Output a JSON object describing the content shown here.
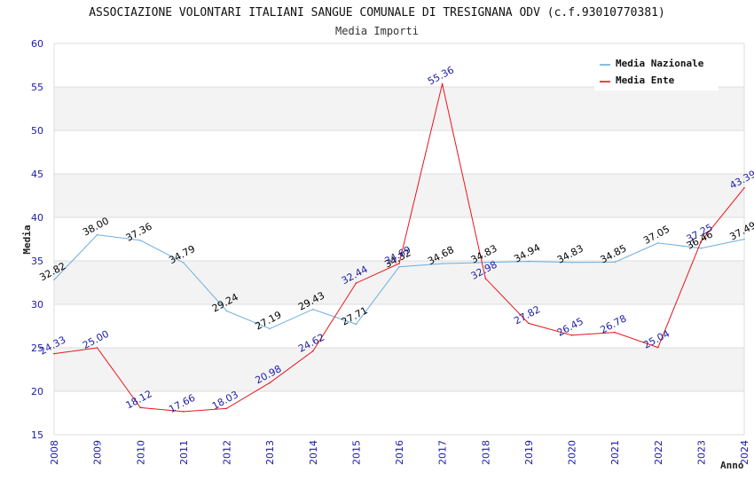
{
  "chart_data": {
    "type": "line",
    "title": "ASSOCIAZIONE VOLONTARI ITALIANI SANGUE COMUNALE DI TRESIGNANA ODV (c.f.93010770381)",
    "subtitle": "Media Importi",
    "xlabel": "Anno",
    "ylabel": "Media",
    "ylim": [
      15,
      60
    ],
    "yticks": [
      15,
      20,
      25,
      30,
      35,
      40,
      45,
      50,
      55,
      60
    ],
    "grid": true,
    "legend_position": "top-right",
    "x": [
      "2008",
      "2009",
      "2010",
      "2011",
      "2012",
      "2013",
      "2014",
      "2015",
      "2016",
      "2017",
      "2018",
      "2019",
      "2020",
      "2021",
      "2022",
      "2023",
      "2024"
    ],
    "series": [
      {
        "name": "Media Nazionale",
        "color": "#6aaee0",
        "label_color": "#000000",
        "values": [
          32.82,
          38.0,
          37.36,
          34.79,
          29.24,
          27.19,
          29.43,
          27.71,
          34.32,
          34.68,
          34.83,
          34.94,
          34.83,
          34.85,
          37.05,
          36.46,
          37.49
        ],
        "labels": [
          "32.82",
          "38.00",
          "37.36",
          "34.79",
          "29.24",
          "27.19",
          "29.43",
          "27.71",
          "34.32",
          "34.68",
          "34.83",
          "34.94",
          "34.83",
          "34.85",
          "37.05",
          "36.46",
          "37.49"
        ]
      },
      {
        "name": "Media Ente",
        "color": "#e8141c",
        "label_color": "#1a1aa6",
        "values": [
          24.33,
          25.0,
          18.12,
          17.66,
          18.03,
          20.98,
          24.62,
          32.44,
          34.69,
          55.36,
          32.98,
          27.82,
          26.45,
          26.78,
          25.04,
          37.25,
          43.39
        ],
        "labels": [
          "24.33",
          "25.00",
          "18.12",
          "17.66",
          "18.03",
          "20.98",
          "24.62",
          "32.44",
          "34.69",
          "55.36",
          "32.98",
          "27.82",
          "26.45",
          "26.78",
          "25.04",
          "37.25",
          "43.39"
        ]
      }
    ]
  }
}
